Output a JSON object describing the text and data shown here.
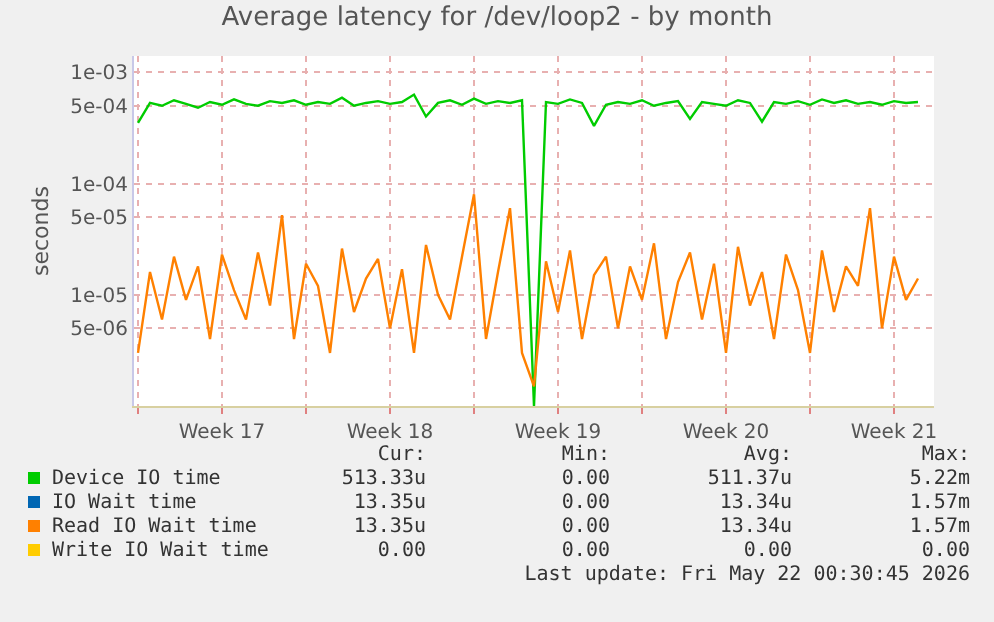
{
  "chart_data": {
    "type": "line",
    "title": "Average latency for /dev/loop2 - by month",
    "ylabel": "seconds",
    "x": [
      "2026-04-20T00:00",
      "2026-04-20T12:00",
      "2026-04-21T00:00",
      "2026-04-21T12:00",
      "2026-04-22T00:00",
      "2026-04-22T12:00",
      "2026-04-23T00:00",
      "2026-04-23T12:00",
      "2026-04-24T00:00",
      "2026-04-24T12:00",
      "2026-04-25T00:00",
      "2026-04-25T12:00",
      "2026-04-26T00:00",
      "2026-04-26T12:00",
      "2026-04-27T00:00",
      "2026-04-27T12:00",
      "2026-04-28T00:00",
      "2026-04-28T12:00",
      "2026-04-29T00:00",
      "2026-04-29T12:00",
      "2026-04-30T00:00",
      "2026-04-30T12:00",
      "2026-05-01T00:00",
      "2026-05-01T12:00",
      "2026-05-02T00:00",
      "2026-05-02T12:00",
      "2026-05-03T00:00",
      "2026-05-03T12:00",
      "2026-05-04T00:00",
      "2026-05-04T12:00",
      "2026-05-05T00:00",
      "2026-05-05T12:00",
      "2026-05-06T00:00",
      "2026-05-06T12:00",
      "2026-05-07T00:00",
      "2026-05-07T12:00",
      "2026-05-08T00:00",
      "2026-05-08T12:00",
      "2026-05-09T00:00",
      "2026-05-09T12:00",
      "2026-05-10T00:00",
      "2026-05-10T12:00",
      "2026-05-11T00:00",
      "2026-05-11T12:00",
      "2026-05-12T00:00",
      "2026-05-12T12:00",
      "2026-05-13T00:00",
      "2026-05-13T12:00",
      "2026-05-14T00:00",
      "2026-05-14T12:00",
      "2026-05-15T00:00",
      "2026-05-15T12:00",
      "2026-05-16T00:00",
      "2026-05-16T12:00",
      "2026-05-17T00:00",
      "2026-05-17T12:00",
      "2026-05-18T00:00",
      "2026-05-18T12:00",
      "2026-05-19T00:00",
      "2026-05-19T12:00",
      "2026-05-20T00:00",
      "2026-05-20T12:00",
      "2026-05-21T00:00",
      "2026-05-21T12:00",
      "2026-05-22T00:00",
      "2026-05-22T12:00"
    ],
    "series": [
      {
        "name": "Device IO time",
        "color": "#00cc00",
        "values": [
          0.00035,
          0.00053,
          0.0005,
          0.00056,
          0.00052,
          0.00048,
          0.00054,
          0.00051,
          0.00057,
          0.00052,
          0.0005,
          0.00055,
          0.00053,
          0.00056,
          0.00051,
          0.00054,
          0.00052,
          0.00059,
          0.0005,
          0.00053,
          0.00055,
          0.00052,
          0.00054,
          0.00063,
          0.0004,
          0.00053,
          0.00056,
          0.00051,
          0.00058,
          0.00052,
          0.00055,
          0.00053,
          0.00056,
          1e-06,
          0.00054,
          0.00052,
          0.00057,
          0.00053,
          0.00033,
          0.00051,
          0.00054,
          0.00052,
          0.00056,
          0.0005,
          0.00053,
          0.00055,
          0.00038,
          0.00054,
          0.00052,
          0.0005,
          0.00056,
          0.00053,
          0.00036,
          0.00054,
          0.00052,
          0.00055,
          0.00051,
          0.00057,
          0.00053,
          0.00056,
          0.00052,
          0.00054,
          0.00051,
          0.00055,
          0.00053,
          0.00054
        ]
      },
      {
        "name": "IO Wait time",
        "color": "#0066b3",
        "values": [
          null,
          null,
          null,
          null,
          null,
          null,
          null,
          null,
          null,
          null,
          null,
          null,
          null,
          null,
          null,
          null,
          null,
          null,
          null,
          null,
          null,
          null,
          null,
          null,
          null,
          null,
          null,
          null,
          null,
          null,
          null,
          null,
          null,
          null,
          null,
          null,
          null,
          null,
          null,
          null,
          null,
          null,
          null,
          null,
          null,
          null,
          null,
          null,
          null,
          null,
          null,
          null,
          null,
          null,
          null,
          null,
          null,
          null,
          null,
          null,
          null,
          null,
          null,
          null,
          null,
          null
        ]
      },
      {
        "name": "Read IO Wait time",
        "color": "#ff8000",
        "values": [
          3e-06,
          1.6e-05,
          6e-06,
          2.2e-05,
          9e-06,
          1.8e-05,
          4e-06,
          2.3e-05,
          1.1e-05,
          6e-06,
          2.4e-05,
          8e-06,
          5.2e-05,
          4e-06,
          1.9e-05,
          1.2e-05,
          3e-06,
          2.6e-05,
          7e-06,
          1.4e-05,
          2.1e-05,
          5e-06,
          1.7e-05,
          3e-06,
          2.8e-05,
          1e-05,
          6e-06,
          2.2e-05,
          8e-05,
          4e-06,
          1.6e-05,
          6e-05,
          3e-06,
          1.5e-06,
          2e-05,
          7e-06,
          2.5e-05,
          4e-06,
          1.5e-05,
          2.2e-05,
          5e-06,
          1.8e-05,
          9e-06,
          2.9e-05,
          4e-06,
          1.3e-05,
          2.4e-05,
          6e-06,
          1.9e-05,
          3e-06,
          2.7e-05,
          8e-06,
          1.6e-05,
          4e-06,
          2.3e-05,
          1.1e-05,
          3e-06,
          2.5e-05,
          7e-06,
          1.8e-05,
          1.2e-05,
          6e-05,
          5e-06,
          2.2e-05,
          9e-06,
          1.4e-05
        ]
      },
      {
        "name": "Write IO Wait time",
        "color": "#ffcc00",
        "values": [
          null,
          null,
          null,
          null,
          null,
          null,
          null,
          null,
          null,
          null,
          null,
          null,
          null,
          null,
          null,
          null,
          null,
          null,
          null,
          null,
          null,
          null,
          null,
          null,
          null,
          null,
          null,
          null,
          null,
          null,
          null,
          null,
          null,
          null,
          null,
          null,
          null,
          null,
          null,
          null,
          null,
          null,
          null,
          null,
          null,
          null,
          null,
          null,
          null,
          null,
          null,
          null,
          null,
          null,
          null,
          null,
          null,
          null,
          null,
          null,
          null,
          null,
          null,
          null,
          null,
          null
        ]
      }
    ],
    "xlim": [
      "2026-04-19T20:00",
      "2026-05-23T04:00"
    ],
    "xticks": [
      {
        "value": "2026-04-20T00:00",
        "label": null
      },
      {
        "value": "2026-04-23T12:00",
        "label": "Week 17"
      },
      {
        "value": "2026-04-27T00:00",
        "label": null
      },
      {
        "value": "2026-04-30T12:00",
        "label": "Week 18"
      },
      {
        "value": "2026-05-04T00:00",
        "label": null
      },
      {
        "value": "2026-05-07T12:00",
        "label": "Week 19"
      },
      {
        "value": "2026-05-11T00:00",
        "label": null
      },
      {
        "value": "2026-05-14T12:00",
        "label": "Week 20"
      },
      {
        "value": "2026-05-18T00:00",
        "label": null
      },
      {
        "value": "2026-05-21T12:00",
        "label": "Week 21"
      }
    ],
    "ylim": [
      1e-06,
      0.0014
    ],
    "yticks": [
      {
        "value": 5e-06,
        "label": "5e-06"
      },
      {
        "value": 1e-05,
        "label": "1e-05"
      },
      {
        "value": 5e-05,
        "label": "5e-05"
      },
      {
        "value": 0.0001,
        "label": "1e-04"
      },
      {
        "value": 0.0005,
        "label": "5e-04"
      },
      {
        "value": 0.001,
        "label": "1e-03"
      }
    ],
    "log": true,
    "grid": true,
    "legend": "bottom",
    "marker": "none",
    "line_style": "solid",
    "annotations": [
      "Cur:",
      "Min:",
      "Avg:",
      "Max:",
      "513.33u",
      "0.00",
      "511.37u",
      "5.22m",
      "13.35u",
      "0.00",
      "13.34u",
      "1.57m",
      "13.35u",
      "0.00",
      "13.34u",
      "1.57m",
      "0.00",
      "0.00",
      "0.00",
      "0.00",
      "Last update: Fri May 22 00:30:45 2026"
    ]
  }
}
